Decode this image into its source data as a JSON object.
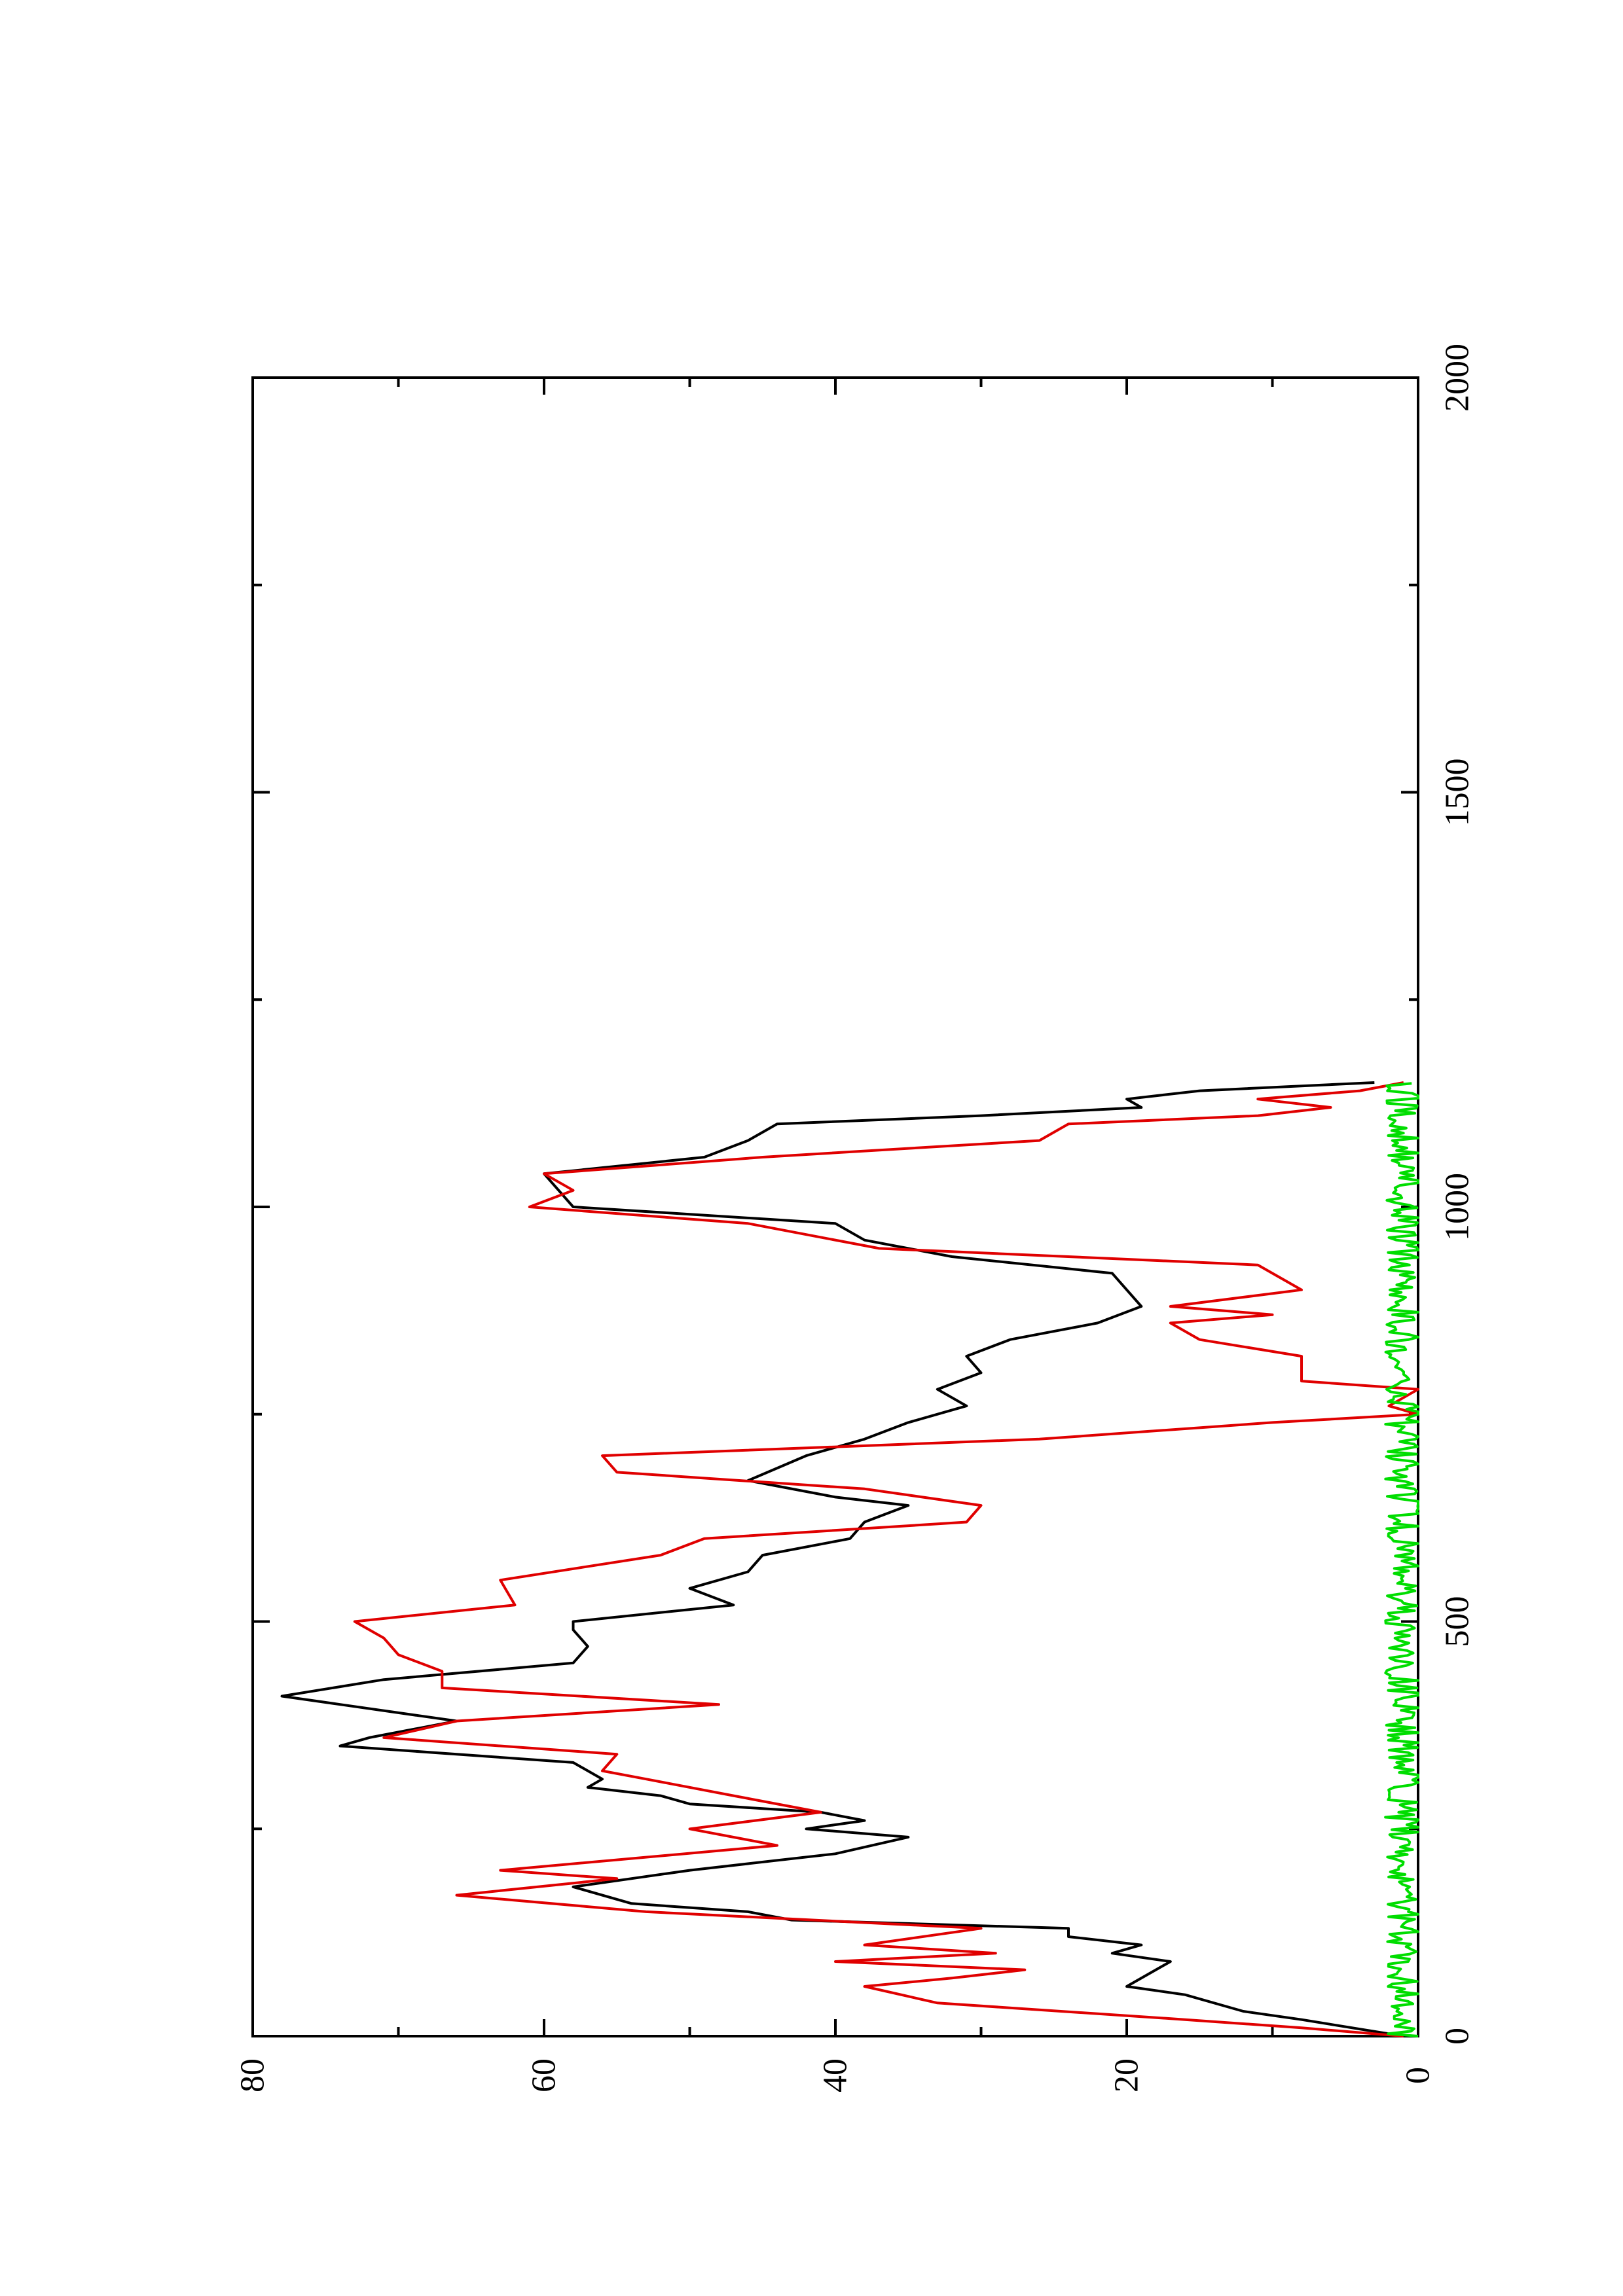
{
  "chart_data": {
    "type": "line",
    "title": "",
    "xlabel": "",
    "ylabel": "",
    "orientation": "rotated-90-ccw",
    "xlim": [
      0,
      2000
    ],
    "ylim": [
      0,
      80
    ],
    "x_ticks": [
      "0",
      "500",
      "1000",
      "1500",
      "2000"
    ],
    "y_ticks": [
      "0",
      "20",
      "40",
      "60",
      "80"
    ],
    "grid": false,
    "legend": "none",
    "series": [
      {
        "color": "#000000",
        "x": [
          0,
          20,
          30,
          50,
          60,
          80,
          90,
          100,
          110,
          120,
          130,
          140,
          150,
          160,
          180,
          200,
          220,
          240,
          250,
          260,
          270,
          280,
          290,
          300,
          310,
          330,
          350,
          360,
          380,
          390,
          400,
          410,
          430,
          450,
          470,
          490,
          500,
          520,
          540,
          560,
          580,
          600,
          620,
          640,
          650,
          670,
          700,
          720,
          740,
          760,
          780,
          800,
          820,
          840,
          860,
          880,
          900,
          920,
          940,
          960,
          980,
          1000,
          1020,
          1040,
          1060,
          1080,
          1100,
          1110,
          1120,
          1130,
          1140,
          1150
        ],
        "y": [
          1,
          8,
          12,
          16,
          20,
          18,
          17,
          21,
          19,
          24,
          24,
          43,
          46,
          54,
          58,
          50,
          40,
          35,
          42,
          38,
          41,
          50,
          52,
          57,
          56,
          58,
          74,
          72,
          66,
          70,
          74,
          78,
          71,
          58,
          57,
          58,
          58,
          47,
          50,
          46,
          45,
          39,
          38,
          35,
          40,
          46,
          42,
          38,
          35,
          31,
          33,
          30,
          31,
          28,
          22,
          19,
          20,
          21,
          32,
          38,
          40,
          58,
          59,
          60,
          49,
          46,
          44,
          30,
          19,
          20,
          15,
          3
        ]
      },
      {
        "color": "#e00000",
        "x": [
          0,
          10,
          20,
          40,
          60,
          70,
          80,
          90,
          100,
          110,
          130,
          150,
          170,
          190,
          200,
          230,
          250,
          270,
          290,
          310,
          320,
          340,
          360,
          380,
          400,
          420,
          440,
          460,
          480,
          500,
          520,
          550,
          580,
          600,
          620,
          640,
          660,
          680,
          700,
          720,
          740,
          750,
          760,
          780,
          790,
          820,
          840,
          860,
          870,
          880,
          900,
          930,
          950,
          980,
          1000,
          1020,
          1040,
          1060,
          1080,
          1100,
          1110,
          1120,
          1130,
          1140,
          1150
        ],
        "y": [
          1,
          8,
          16,
          33,
          38,
          32,
          27,
          40,
          29,
          38,
          30,
          53,
          66,
          55,
          63,
          44,
          50,
          41,
          47,
          53,
          56,
          55,
          71,
          66,
          48,
          67,
          67,
          70,
          71,
          73,
          62,
          63,
          52,
          49,
          31,
          30,
          38,
          55,
          56,
          26,
          10,
          0,
          2,
          0,
          8,
          8,
          15,
          17,
          10,
          17,
          8,
          11,
          37,
          46,
          61,
          58,
          60,
          45,
          26,
          24,
          11,
          6,
          11,
          4,
          1
        ]
      },
      {
        "color": "#00dd00",
        "x": [
          0,
          1150
        ],
        "y": [
          0.5,
          0.5
        ],
        "noise_amplitude": 2.5
      }
    ]
  }
}
